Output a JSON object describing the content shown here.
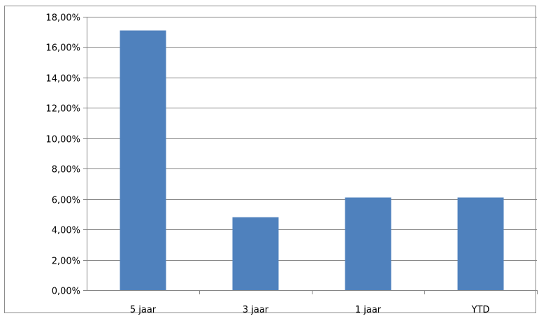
{
  "chart_data": {
    "type": "bar",
    "title": "",
    "xlabel": "",
    "ylabel": "",
    "categories": [
      "5 jaar",
      "3 jaar",
      "1 jaar",
      "YTD"
    ],
    "values": [
      17.1,
      4.8,
      6.1,
      6.1
    ],
    "ylim": [
      0,
      18
    ],
    "ytick_step": 2,
    "ytick_labels": [
      "0,00%",
      "2,00%",
      "4,00%",
      "6,00%",
      "8,00%",
      "10,00%",
      "12,00%",
      "14,00%",
      "16,00%",
      "18,00%"
    ],
    "grid": true,
    "legend": "none",
    "bar_color": "#4F81BD",
    "grid_color": "#868686",
    "axis_color": "#868686"
  }
}
